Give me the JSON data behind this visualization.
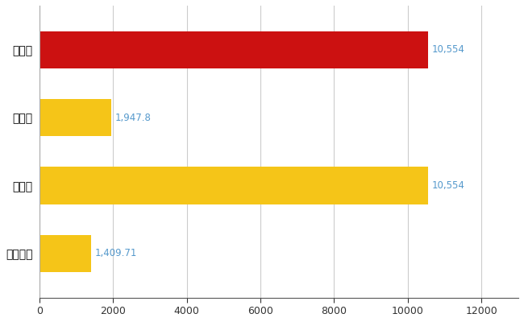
{
  "categories": [
    "富山市",
    "県平均",
    "県最大",
    "全国平均"
  ],
  "values": [
    10554,
    1947.8,
    10554,
    1409.71
  ],
  "bar_colors": [
    "#cc1111",
    "#f5c518",
    "#f5c518",
    "#f5c518"
  ],
  "bar_labels": [
    "10,554",
    "1,947.8",
    "10,554",
    "1,409.71"
  ],
  "label_color": "#5599cc",
  "xlim": [
    0,
    13000
  ],
  "xticks": [
    0,
    2000,
    4000,
    6000,
    8000,
    10000,
    12000
  ],
  "background_color": "#ffffff",
  "grid_color": "#cccccc",
  "bar_height": 0.55
}
